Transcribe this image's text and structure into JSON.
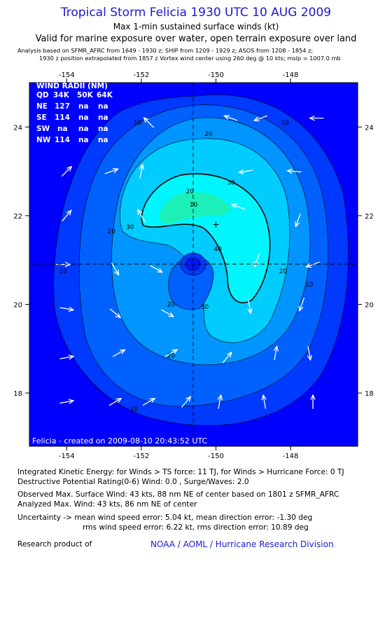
{
  "header": {
    "title": "Tropical Storm Felicia 1930 UTC 10 AUG 2009",
    "subtitle": "Max 1-min sustained surface winds (kt)",
    "valid_line": "Valid for marine exposure over water, open terrain exposure over land",
    "analysis_line1": "Analysis based on   SFMR_AFRC from 1649 - 1930 z;  SHIP from 1209 - 1929 z;  ASOS from 1208 - 1854 z;",
    "analysis_line2": "1930 z position extrapolated from 1857 z Vortex wind center using 260 deg @ 10 kts; mslp = 1007.0 mb"
  },
  "wind_radii": {
    "title": "WIND RADII (NM)",
    "header": [
      "QD",
      "34K",
      "50K",
      "64K"
    ],
    "rows": [
      [
        "NE",
        "127",
        "na",
        "na"
      ],
      [
        "SE",
        "114",
        "na",
        "na"
      ],
      [
        "SW",
        "na",
        "na",
        "na"
      ],
      [
        "NW",
        "114",
        "na",
        "na"
      ]
    ]
  },
  "chart_data": {
    "type": "contour",
    "xlim": [
      -155,
      -146.2
    ],
    "ylim": [
      16.8,
      25
    ],
    "x_ticks": [
      -154,
      -152,
      -150,
      -148
    ],
    "y_ticks": [
      18,
      20,
      22,
      24
    ],
    "x_tick_labels": [
      "-154",
      "-152",
      "-150",
      "-148"
    ],
    "y_tick_labels": [
      "18",
      "20",
      "22",
      "24"
    ],
    "center": {
      "lon": -150.8,
      "lat": 20.9
    },
    "max_wind_marker": {
      "lon": -150.0,
      "lat": 21.8
    },
    "contour_levels_kt": [
      10,
      20,
      30,
      40
    ],
    "contour_labels": [
      {
        "text": "10",
        "lon": -152.1,
        "lat": 24.05
      },
      {
        "text": "20",
        "lon": -150.2,
        "lat": 23.8
      },
      {
        "text": "30",
        "lon": -149.6,
        "lat": 22.7
      },
      {
        "text": "20",
        "lon": -150.7,
        "lat": 22.5
      },
      {
        "text": "10",
        "lon": -150.6,
        "lat": 22.2
      },
      {
        "text": "30",
        "lon": -152.3,
        "lat": 21.7
      },
      {
        "text": "20",
        "lon": -152.8,
        "lat": 21.6
      },
      {
        "text": "40",
        "lon": -149.95,
        "lat": 21.2
      },
      {
        "text": "20",
        "lon": -148.2,
        "lat": 20.7
      },
      {
        "text": "10",
        "lon": -147.5,
        "lat": 20.4
      },
      {
        "text": "10",
        "lon": -148.15,
        "lat": 24.05
      },
      {
        "text": "20",
        "lon": -151.2,
        "lat": 19.95
      },
      {
        "text": "30",
        "lon": -150.3,
        "lat": 19.9
      },
      {
        "text": "20",
        "lon": -151.2,
        "lat": 18.8
      },
      {
        "text": "10",
        "lon": -152.2,
        "lat": 17.6
      },
      {
        "text": "10",
        "lon": -154.1,
        "lat": 20.7
      }
    ],
    "wind_vectors": [
      {
        "lon": -154,
        "lat": 23,
        "dir": 45
      },
      {
        "lon": -151.8,
        "lat": 24.1,
        "dir": 315
      },
      {
        "lon": -149.6,
        "lat": 24.2,
        "dir": 290
      },
      {
        "lon": -148.8,
        "lat": 24.2,
        "dir": 250
      },
      {
        "lon": -147.3,
        "lat": 24.2,
        "dir": 270
      },
      {
        "lon": -147.9,
        "lat": 23.0,
        "dir": 275
      },
      {
        "lon": -149.2,
        "lat": 23.0,
        "dir": 260
      },
      {
        "lon": -152.0,
        "lat": 23.0,
        "dir": 10
      },
      {
        "lon": -152.8,
        "lat": 23.0,
        "dir": 70
      },
      {
        "lon": -154.0,
        "lat": 22.0,
        "dir": 40
      },
      {
        "lon": -152.0,
        "lat": 22.0,
        "dir": 330
      },
      {
        "lon": -149.4,
        "lat": 22.2,
        "dir": 290
      },
      {
        "lon": -147.8,
        "lat": 21.9,
        "dir": 200
      },
      {
        "lon": -147.4,
        "lat": 20.9,
        "dir": 250
      },
      {
        "lon": -148.9,
        "lat": 21.0,
        "dir": 200
      },
      {
        "lon": -154.1,
        "lat": 20.9,
        "dir": 90
      },
      {
        "lon": -152.7,
        "lat": 20.8,
        "dir": 150
      },
      {
        "lon": -151.6,
        "lat": 20.8,
        "dir": 120
      },
      {
        "lon": -149.1,
        "lat": 19.95,
        "dir": 170
      },
      {
        "lon": -147.7,
        "lat": 20.0,
        "dir": 200
      },
      {
        "lon": -154.0,
        "lat": 19.9,
        "dir": 100
      },
      {
        "lon": -152.7,
        "lat": 19.8,
        "dir": 130
      },
      {
        "lon": -151.3,
        "lat": 19.8,
        "dir": 120
      },
      {
        "lon": -154.0,
        "lat": 18.8,
        "dir": 80
      },
      {
        "lon": -152.6,
        "lat": 18.9,
        "dir": 60
      },
      {
        "lon": -151.2,
        "lat": 18.9,
        "dir": 60
      },
      {
        "lon": -149.7,
        "lat": 18.8,
        "dir": 40
      },
      {
        "lon": -148.4,
        "lat": 18.9,
        "dir": 10
      },
      {
        "lon": -147.5,
        "lat": 18.9,
        "dir": 170
      },
      {
        "lon": -154.0,
        "lat": 17.8,
        "dir": 80
      },
      {
        "lon": -152.7,
        "lat": 17.8,
        "dir": 60
      },
      {
        "lon": -151.8,
        "lat": 17.8,
        "dir": 60
      },
      {
        "lon": -150.8,
        "lat": 17.8,
        "dir": 40
      },
      {
        "lon": -149.9,
        "lat": 17.8,
        "dir": 10
      },
      {
        "lon": -148.7,
        "lat": 17.8,
        "dir": 350
      },
      {
        "lon": -147.4,
        "lat": 17.8,
        "dir": 0
      }
    ],
    "colors": {
      "background": "#0000ff",
      "band_0_10": "#0039ff",
      "band_10_20": "#0061ff",
      "band_20_30": "#0095ff",
      "band_30_40": "#00ccff",
      "band_40_plus": "#00f6ff",
      "max_band": "#1cf0b8",
      "center": "#0018ff"
    },
    "created_stamp": "Felicia - created on 2009-08-10 20:43:52 UTC"
  },
  "footer": {
    "ike_line": "Integrated Kinetic Energy:  for Winds > TS force: 11 TJ,  for Winds > Hurricane Force: 0 TJ",
    "dpr_line": "Destructive Potential Rating(0-6)   Wind: 0.0 , Surge/Waves: 2.0",
    "observed_line": "Observed Max. Surface Wind: 43 kts, 88 nm NE of center based on 1801 z SFMR_AFRC",
    "analyzed_line": "Analyzed Max. Wind: 43 kts, 86 nm NE of center",
    "uncert_line1": "Uncertainty -> mean wind speed error: 5.04 kt,   mean direction error:  -1.30 deg",
    "uncert_line2": "rms wind speed error: 6.22 kt,   rms direction error: 10.89 deg",
    "research_label": "Research product of",
    "org_label": "NOAA / AOML / Hurricane Research Division"
  }
}
